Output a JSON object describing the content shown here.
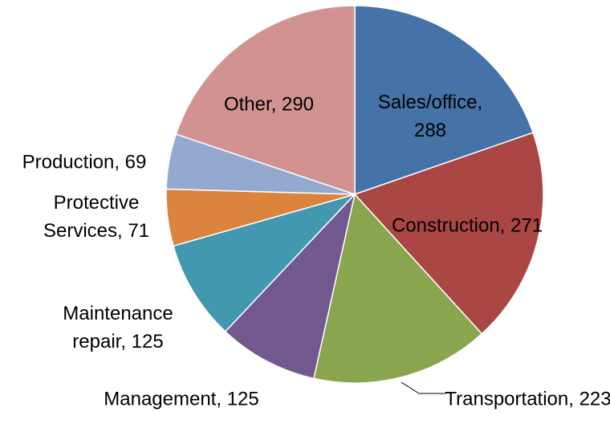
{
  "chart_data": {
    "type": "pie",
    "values": [
      288,
      271,
      223,
      125,
      125,
      71,
      69,
      290
    ],
    "value_labels": [
      "Sales/office, 288",
      "Construction, 271",
      "Transportation, 223",
      "Management, 125",
      "Maintenance repair, 125",
      "Protective Services, 71",
      "Production, 69",
      "Other, 290"
    ],
    "colors": [
      "#4572a7",
      "#aa4643",
      "#89a54e",
      "#71588f",
      "#4198af",
      "#db843d",
      "#93a9cf",
      "#d19392"
    ]
  }
}
